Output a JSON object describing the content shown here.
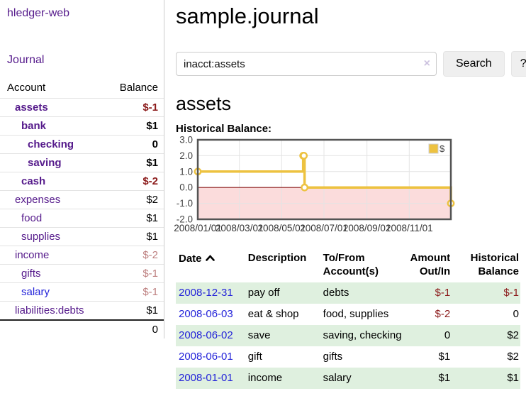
{
  "colors": {
    "link_purple": "#551a8b",
    "link_blue": "#2323d9",
    "negative_strong": "#8b1a1a",
    "negative_soft": "#bd7f7f",
    "row_shade_green": "#dff0df",
    "chart_gold": "#edc240",
    "chart_negative_fill": "#fbdcdc",
    "chart_zero_line": "#8b1a1a",
    "chart_border": "#545454",
    "chart_grid": "#e4e4e4"
  },
  "sidebar": {
    "brand": "hledger-web",
    "journal_link": "Journal",
    "accounts": {
      "headers": [
        "Account",
        "Balance"
      ],
      "rows": [
        {
          "label": "assets",
          "depth": 1,
          "bold": true,
          "link": "purple",
          "balance": "$-1",
          "balance_class": "neg"
        },
        {
          "label": "bank",
          "depth": 2,
          "bold": true,
          "link": "purple",
          "balance": "$1",
          "balance_class": "plain"
        },
        {
          "label": "checking",
          "depth": 3,
          "bold": true,
          "link": "purple",
          "balance": "0",
          "balance_class": "plain"
        },
        {
          "label": "saving",
          "depth": 3,
          "bold": true,
          "link": "purple",
          "balance": "$1",
          "balance_class": "plain"
        },
        {
          "label": "cash",
          "depth": 2,
          "bold": true,
          "link": "purple",
          "balance": "$-2",
          "balance_class": "neg"
        },
        {
          "label": "expenses",
          "depth": 1,
          "bold": false,
          "link": "purple",
          "balance": "$2",
          "balance_class": "plain"
        },
        {
          "label": "food",
          "depth": 2,
          "bold": false,
          "link": "purple",
          "balance": "$1",
          "balance_class": "plain"
        },
        {
          "label": "supplies",
          "depth": 2,
          "bold": false,
          "link": "purple",
          "balance": "$1",
          "balance_class": "plain"
        },
        {
          "label": "income",
          "depth": 1,
          "bold": false,
          "link": "purple",
          "balance": "$-2",
          "balance_class": "soft"
        },
        {
          "label": "gifts",
          "depth": 2,
          "bold": false,
          "link": "purple",
          "balance": "$-1",
          "balance_class": "soft"
        },
        {
          "label": "salary",
          "depth": 2,
          "bold": false,
          "link": "blue",
          "balance": "$-1",
          "balance_class": "soft"
        },
        {
          "label": "liabilities:debts",
          "depth": 1,
          "bold": false,
          "link": "purple",
          "balance": "$1",
          "balance_class": "plain"
        }
      ],
      "total": "0"
    }
  },
  "main": {
    "title": "sample.journal",
    "search": {
      "value": "inacct:assets",
      "clear_icon": "×",
      "button_label": "Search",
      "help_label": "?"
    },
    "account_heading": "assets",
    "chart_label": "Historical Balance:"
  },
  "chart_data": {
    "type": "line",
    "title": "Historical Balance:",
    "step": true,
    "legend": {
      "label": "$",
      "position": "top-right"
    },
    "series": [
      {
        "name": "$",
        "color": "#edc240",
        "points": [
          [
            "2008-01-01",
            1
          ],
          [
            "2008-06-01",
            2
          ],
          [
            "2008-06-02",
            2
          ],
          [
            "2008-06-03",
            0
          ],
          [
            "2008-12-31",
            -1
          ]
        ]
      }
    ],
    "xlim": [
      "2008-01-01",
      "2008-12-31"
    ],
    "ylim": [
      -2,
      3
    ],
    "x_ticks": [
      {
        "date": "2008-01-01",
        "label": "2008/01/01"
      },
      {
        "date": "2008-03-01",
        "label": "2008/03/01"
      },
      {
        "date": "2008-05-01",
        "label": "2008/05/01"
      },
      {
        "date": "2008-07-01",
        "label": "2008/07/01"
      },
      {
        "date": "2008-09-01",
        "label": "2008/09/01"
      },
      {
        "date": "2008-11-01",
        "label": "2008/11/01"
      }
    ],
    "y_ticks": [
      {
        "v": 3,
        "label": "3.0"
      },
      {
        "v": 2,
        "label": "2.0"
      },
      {
        "v": 1,
        "label": "1.0"
      },
      {
        "v": 0,
        "label": "0.0"
      },
      {
        "v": -1,
        "label": "-1.0"
      },
      {
        "v": -2,
        "label": "-2.0"
      }
    ],
    "grid": true
  },
  "transactions": {
    "headers": [
      [
        "Date"
      ],
      [
        "Description"
      ],
      [
        "To/From",
        "Account(s)"
      ],
      [
        "Amount",
        "Out/In"
      ],
      [
        "Historical",
        "Balance"
      ]
    ],
    "sort_column": "Date",
    "sort_direction": "ascending",
    "rows": [
      {
        "date": "2008-12-31",
        "description": "pay off",
        "accounts": "debts",
        "amount": "$-1",
        "amount_class": "neg",
        "balance": "$-1",
        "balance_class": "neg",
        "shaded": true
      },
      {
        "date": "2008-06-03",
        "description": "eat & shop",
        "accounts": "food, supplies",
        "amount": "$-2",
        "amount_class": "neg",
        "balance": "0",
        "balance_class": "plain",
        "shaded": false
      },
      {
        "date": "2008-06-02",
        "description": "save",
        "accounts": "saving, checking",
        "amount": "0",
        "amount_class": "plain",
        "balance": "$2",
        "balance_class": "plain",
        "shaded": true
      },
      {
        "date": "2008-06-01",
        "description": "gift",
        "accounts": "gifts",
        "amount": "$1",
        "amount_class": "plain",
        "balance": "$2",
        "balance_class": "plain",
        "shaded": false
      },
      {
        "date": "2008-01-01",
        "description": "income",
        "accounts": "salary",
        "amount": "$1",
        "amount_class": "plain",
        "balance": "$1",
        "balance_class": "plain",
        "shaded": true
      }
    ]
  }
}
